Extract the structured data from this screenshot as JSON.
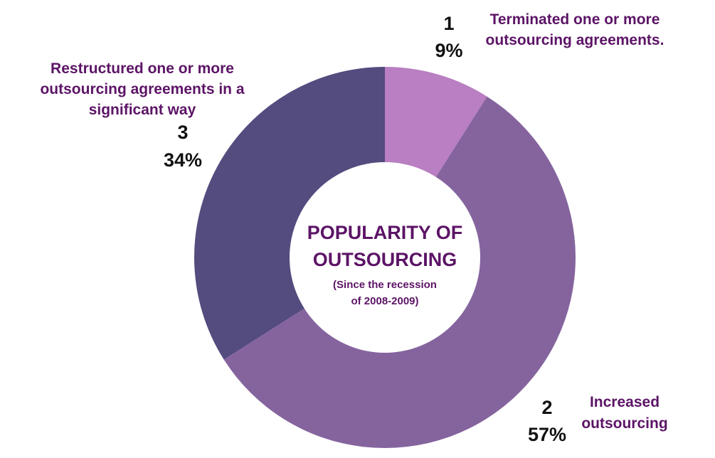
{
  "chart_data": {
    "type": "pie",
    "style": "donut",
    "title_lines": [
      "POPULARITY OF",
      "OUTSOURCING"
    ],
    "subtitle_lines": [
      "(Since the recession",
      "of 2008-2009)"
    ],
    "slices": [
      {
        "number": "1",
        "percent_label": "9%",
        "value": 9,
        "label_lines": [
          "Terminated one or more",
          "outsourcing agreements."
        ],
        "color": "#b97fc2"
      },
      {
        "number": "2",
        "percent_label": "57%",
        "value": 57,
        "label_lines": [
          "Increased",
          "outsourcing"
        ],
        "color": "#85649e"
      },
      {
        "number": "3",
        "percent_label": "34%",
        "value": 34,
        "label_lines": [
          "Restructured one or more",
          "outsourcing agreements in a",
          "significant way"
        ],
        "color": "#544b7e"
      }
    ],
    "colors": {
      "label_text": "#5c1466",
      "number_text": "#111111",
      "center_fill": "#ffffff",
      "background": "#ffffff"
    }
  }
}
